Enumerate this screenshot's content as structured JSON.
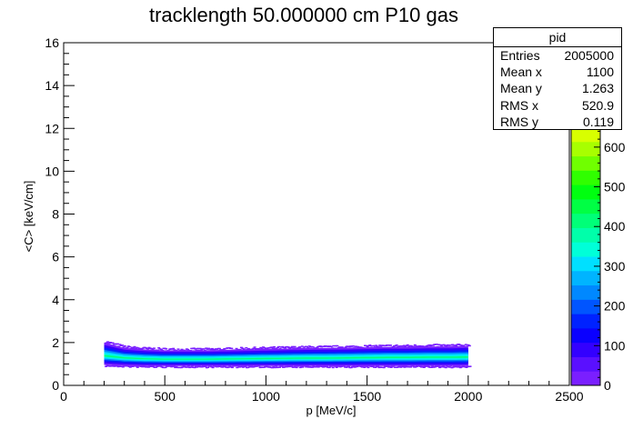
{
  "chart_data": {
    "type": "heatmap",
    "title": "tracklength 50.000000 cm P10 gas",
    "xlabel": "p [MeV/c]",
    "ylabel": "<C> [keV/cm]",
    "xlim": [
      0,
      2500
    ],
    "ylim": [
      0,
      16
    ],
    "x_ticks": [
      "0",
      "500",
      "1000",
      "1500",
      "2000",
      "2500"
    ],
    "y_ticks": [
      "0",
      "2",
      "4",
      "6",
      "8",
      "10",
      "12",
      "14",
      "16"
    ],
    "band": {
      "x": [
        200,
        300,
        400,
        500,
        600,
        700,
        800,
        900,
        1000,
        1100,
        1200,
        1300,
        1400,
        1500,
        1600,
        1700,
        1800,
        1900,
        2000
      ],
      "y_mean": [
        1.38,
        1.28,
        1.24,
        1.22,
        1.22,
        1.22,
        1.23,
        1.24,
        1.25,
        1.26,
        1.27,
        1.27,
        1.28,
        1.29,
        1.3,
        1.3,
        1.31,
        1.31,
        1.32
      ],
      "y_low": [
        0.95,
        0.92,
        0.9,
        0.9,
        0.9,
        0.9,
        0.9,
        0.9,
        0.9,
        0.9,
        0.9,
        0.9,
        0.9,
        0.9,
        0.9,
        0.9,
        0.9,
        0.9,
        0.9
      ],
      "y_high": [
        2.0,
        1.75,
        1.68,
        1.64,
        1.64,
        1.64,
        1.66,
        1.68,
        1.7,
        1.72,
        1.74,
        1.75,
        1.76,
        1.78,
        1.8,
        1.8,
        1.82,
        1.82,
        1.84
      ]
    },
    "colorbar": {
      "ticks": [
        "0",
        "100",
        "200",
        "300",
        "400",
        "500",
        "600"
      ],
      "max": 700,
      "colors": [
        "#7a1fff",
        "#5a10ff",
        "#3300ff",
        "#0a00ff",
        "#0022ff",
        "#0055ff",
        "#0088ff",
        "#00b4ff",
        "#00e0ff",
        "#00ffd8",
        "#00ffaa",
        "#00ff78",
        "#00ff44",
        "#00ff10",
        "#30ff00",
        "#70ff00",
        "#a8ff00",
        "#d8ff00"
      ],
      "extra_ticks": [
        "0",
        "0"
      ]
    },
    "stats": {
      "title": "pid",
      "rows": [
        {
          "label": "Entries",
          "value": "2005000"
        },
        {
          "label": "Mean x",
          "value": "1100"
        },
        {
          "label": "Mean y",
          "value": "1.263"
        },
        {
          "label": "RMS x",
          "value": "520.9"
        },
        {
          "label": "RMS y",
          "value": "0.119"
        }
      ]
    }
  }
}
